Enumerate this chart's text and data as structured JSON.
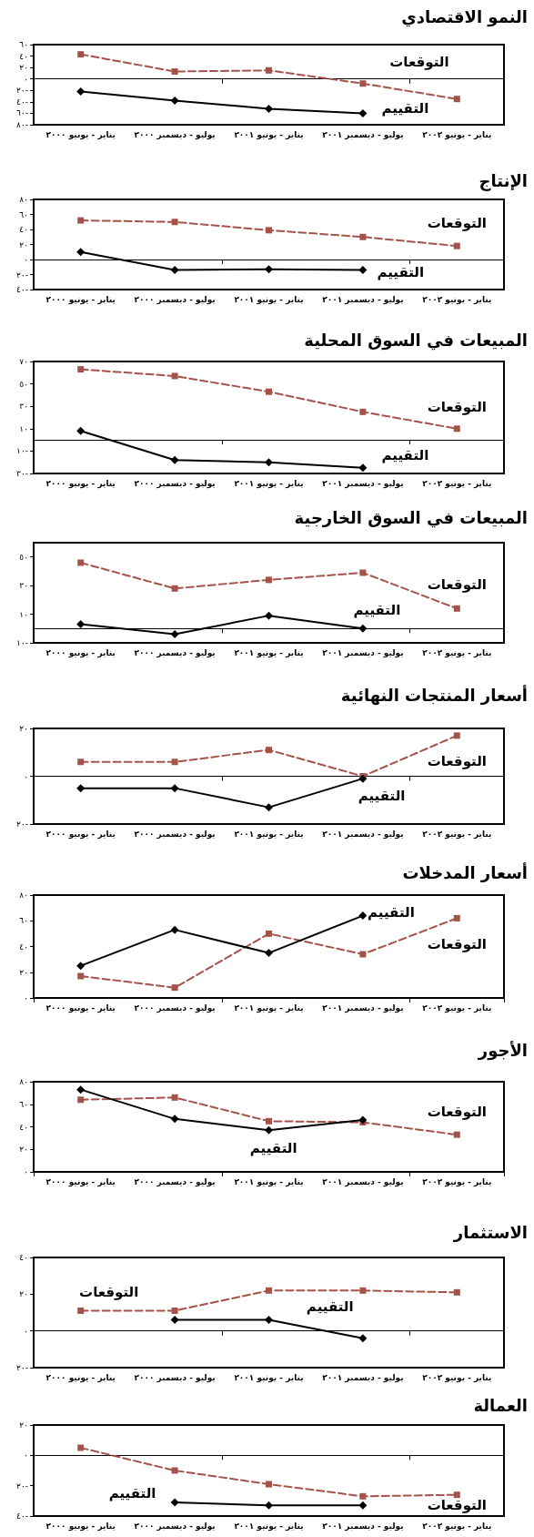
{
  "chart_data": [
    {
      "type": "line",
      "title": "النمو الاقتصادي",
      "categories": [
        "يناير - يونيو ٢٠٠٠",
        "يوليو - ديسمبر ٢٠٠٠",
        "يناير - يونيو ٢٠٠١",
        "يوليو - ديسمبر ٢٠٠١",
        "يناير - يونيو ٢٠٠٢"
      ],
      "ylim": [
        -80,
        60
      ],
      "yticks": [
        {
          "value": -80,
          "label": "٨٠-"
        },
        {
          "value": -60,
          "label": "٦٠-"
        },
        {
          "value": -40,
          "label": "٤٠-"
        },
        {
          "value": -20,
          "label": "٢٠-"
        },
        {
          "value": 0,
          "label": "٠"
        },
        {
          "value": 20,
          "label": "٢٠"
        },
        {
          "value": 40,
          "label": "٤٠"
        },
        {
          "value": 60,
          "label": "٦٠"
        }
      ],
      "series": [
        {
          "name": "التقييم",
          "color": "#000000",
          "marker": "diamond",
          "line_style": "solid",
          "values": [
            -22,
            -38,
            -52,
            -60,
            null
          ]
        },
        {
          "name": "التوقعات",
          "color": "#a5534a",
          "marker": "square",
          "line_style": "dashed",
          "values": [
            43,
            13,
            15,
            -8,
            -35
          ]
        }
      ]
    },
    {
      "type": "line",
      "title": "الإنتاج",
      "categories": [
        "يناير - يونيو ٢٠٠٠",
        "يوليو - ديسمبر ٢٠٠٠",
        "يناير - يونيو ٢٠٠١",
        "يوليو - ديسمبر ٢٠٠١",
        "يناير - يونيو ٢٠٠٢"
      ],
      "ylim": [
        -40,
        80
      ],
      "yticks": [
        {
          "value": -40,
          "label": "٤٠-"
        },
        {
          "value": -20,
          "label": "٢٠-"
        },
        {
          "value": 0,
          "label": "٠"
        },
        {
          "value": 20,
          "label": "٢٠"
        },
        {
          "value": 40,
          "label": "٤٠"
        },
        {
          "value": 60,
          "label": "٦٠"
        },
        {
          "value": 80,
          "label": "٨٠"
        }
      ],
      "series": [
        {
          "name": "التقييم",
          "color": "#000000",
          "marker": "diamond",
          "line_style": "solid",
          "values": [
            10,
            -14,
            -13,
            -14,
            null
          ]
        },
        {
          "name": "التوقعات",
          "color": "#a5534a",
          "marker": "square",
          "line_style": "dashed",
          "values": [
            52,
            50,
            39,
            30,
            18
          ]
        }
      ]
    },
    {
      "type": "line",
      "title": "المبيعات في السوق المحلية",
      "categories": [
        "يناير - يونيو ٢٠٠٠",
        "يوليو - ديسمبر ٢٠٠٠",
        "يناير - يونيو ٢٠٠١",
        "يوليو - ديسمبر ٢٠٠١",
        "يناير - يونيو ٢٠٠٢"
      ],
      "ylim": [
        -30,
        70
      ],
      "yticks": [
        {
          "value": -30,
          "label": "٣٠-"
        },
        {
          "value": -10,
          "label": "١٠-"
        },
        {
          "value": 10,
          "label": "١٠"
        },
        {
          "value": 30,
          "label": "٣٠"
        },
        {
          "value": 50,
          "label": "٥٠"
        },
        {
          "value": 70,
          "label": "٧٠"
        }
      ],
      "series": [
        {
          "name": "التقييم",
          "color": "#000000",
          "marker": "diamond",
          "line_style": "solid",
          "values": [
            8,
            -18,
            -20,
            -25,
            null
          ]
        },
        {
          "name": "التوقعات",
          "color": "#a5534a",
          "marker": "square",
          "line_style": "dashed",
          "values": [
            63,
            57,
            43,
            25,
            10
          ]
        }
      ]
    },
    {
      "type": "line",
      "title": "المبيعات في السوق الخارجية",
      "categories": [
        "يناير - يونيو ٢٠٠٠",
        "يوليو - ديسمبر ٢٠٠٠",
        "يناير - يونيو ٢٠٠١",
        "يوليو - ديسمبر ٢٠٠١",
        "يناير - يونيو ٢٠٠٢"
      ],
      "ylim": [
        -10,
        60
      ],
      "yticks": [
        {
          "value": -10,
          "label": "١٠-"
        },
        {
          "value": 10,
          "label": "١٠"
        },
        {
          "value": 30,
          "label": "٣٠"
        },
        {
          "value": 50,
          "label": "٥٠"
        }
      ],
      "series": [
        {
          "name": "التقييم",
          "color": "#000000",
          "marker": "diamond",
          "line_style": "solid",
          "values": [
            3,
            -4,
            9,
            0,
            null
          ]
        },
        {
          "name": "التوقعات",
          "color": "#a5534a",
          "marker": "square",
          "line_style": "dashed",
          "values": [
            46,
            28,
            34,
            39,
            14
          ]
        }
      ]
    },
    {
      "type": "line",
      "title": "أسعار المنتجات النهائية",
      "categories": [
        "يناير - يونيو ٢٠٠٠",
        "يوليو - ديسمبر ٢٠٠٠",
        "يناير - يونيو ٢٠٠١",
        "يوليو - ديسمبر ٢٠٠١",
        "يناير - يونيو ٢٠٠٢"
      ],
      "ylim": [
        -20,
        20
      ],
      "yticks": [
        {
          "value": -20,
          "label": "٢٠-"
        },
        {
          "value": 0,
          "label": "٠"
        },
        {
          "value": 20,
          "label": "٢٠"
        }
      ],
      "series": [
        {
          "name": "التقييم",
          "color": "#000000",
          "marker": "diamond",
          "line_style": "solid",
          "values": [
            -5,
            -5,
            -13,
            -1,
            null
          ]
        },
        {
          "name": "التوقعات",
          "color": "#a5534a",
          "marker": "square",
          "line_style": "dashed",
          "values": [
            6,
            6,
            11,
            0,
            17
          ]
        }
      ]
    },
    {
      "type": "line",
      "title": "أسعار المدخلات",
      "categories": [
        "يناير - يونيو ٢٠٠٠",
        "يوليو - ديسمبر ٢٠٠٠",
        "يناير - يونيو ٢٠٠١",
        "يوليو - ديسمبر ٢٠٠١",
        "يناير - يونيو ٢٠٠٢"
      ],
      "ylim": [
        0,
        80
      ],
      "yticks": [
        {
          "value": 0,
          "label": "٠"
        },
        {
          "value": 20,
          "label": "٢٠"
        },
        {
          "value": 40,
          "label": "٤٠"
        },
        {
          "value": 60,
          "label": "٦٠"
        },
        {
          "value": 80,
          "label": "٨٠"
        }
      ],
      "series": [
        {
          "name": "التقييم",
          "color": "#000000",
          "marker": "diamond",
          "line_style": "solid",
          "values": [
            25,
            53,
            35,
            64,
            null
          ]
        },
        {
          "name": "التوقعات",
          "color": "#a5534a",
          "marker": "square",
          "line_style": "dashed",
          "values": [
            17,
            8,
            50,
            34,
            62
          ]
        }
      ]
    },
    {
      "type": "line",
      "title": "الأجور",
      "categories": [
        "يناير - يونيو ٢٠٠٠",
        "يوليو - ديسمبر ٢٠٠٠",
        "يناير - يونيو ٢٠٠١",
        "يوليو - ديسمبر ٢٠٠١",
        "يناير - يونيو ٢٠٠٢"
      ],
      "ylim": [
        0,
        80
      ],
      "yticks": [
        {
          "value": 0,
          "label": "٠"
        },
        {
          "value": 20,
          "label": "٢٠"
        },
        {
          "value": 40,
          "label": "٤٠"
        },
        {
          "value": 60,
          "label": "٦٠"
        },
        {
          "value": 80,
          "label": "٨٠"
        }
      ],
      "series": [
        {
          "name": "التقييم",
          "color": "#000000",
          "marker": "diamond",
          "line_style": "solid",
          "values": [
            73,
            47,
            37,
            46,
            null
          ]
        },
        {
          "name": "التوقعات",
          "color": "#a5534a",
          "marker": "square",
          "line_style": "dashed",
          "values": [
            64,
            66,
            45,
            44,
            33
          ]
        }
      ]
    },
    {
      "type": "line",
      "title": "الاستثمار",
      "categories": [
        "يناير - يونيو ٢٠٠٠",
        "يوليو - ديسمبر ٢٠٠٠",
        "يناير - يونيو ٢٠٠١",
        "يوليو - ديسمبر ٢٠٠١",
        "يناير - يونيو ٢٠٠٢"
      ],
      "ylim": [
        -20,
        40
      ],
      "yticks": [
        {
          "value": -20,
          "label": "٢٠-"
        },
        {
          "value": 0,
          "label": "٠"
        },
        {
          "value": 20,
          "label": "٢٠"
        },
        {
          "value": 40,
          "label": "٤٠"
        }
      ],
      "series": [
        {
          "name": "التقييم",
          "color": "#000000",
          "marker": "diamond",
          "line_style": "solid",
          "values": [
            null,
            6,
            6,
            -4,
            null
          ]
        },
        {
          "name": "التوقعات",
          "color": "#a5534a",
          "marker": "square",
          "line_style": "dashed",
          "values": [
            11,
            11,
            22,
            22,
            21
          ]
        }
      ]
    },
    {
      "type": "line",
      "title": "العمالة",
      "categories": [
        "يناير - يونيو ٢٠٠٠",
        "يوليو - ديسمبر ٢٠٠٠",
        "يناير - يونيو ٢٠٠١",
        "يوليو - ديسمبر ٢٠٠١",
        "يناير - يونيو ٢٠٠٢"
      ],
      "ylim": [
        -40,
        20
      ],
      "yticks": [
        {
          "value": -40,
          "label": "٤٠-"
        },
        {
          "value": -20,
          "label": "٢٠-"
        },
        {
          "value": 0,
          "label": "٠"
        },
        {
          "value": 20,
          "label": "٢٠"
        }
      ],
      "series": [
        {
          "name": "التقييم",
          "color": "#000000",
          "marker": "diamond",
          "line_style": "solid",
          "values": [
            null,
            -31,
            -33,
            -33,
            null
          ]
        },
        {
          "name": "التوقعات",
          "color": "#a5534a",
          "marker": "square",
          "line_style": "dashed",
          "values": [
            5,
            -10,
            -19,
            -27,
            -26
          ]
        }
      ]
    }
  ]
}
